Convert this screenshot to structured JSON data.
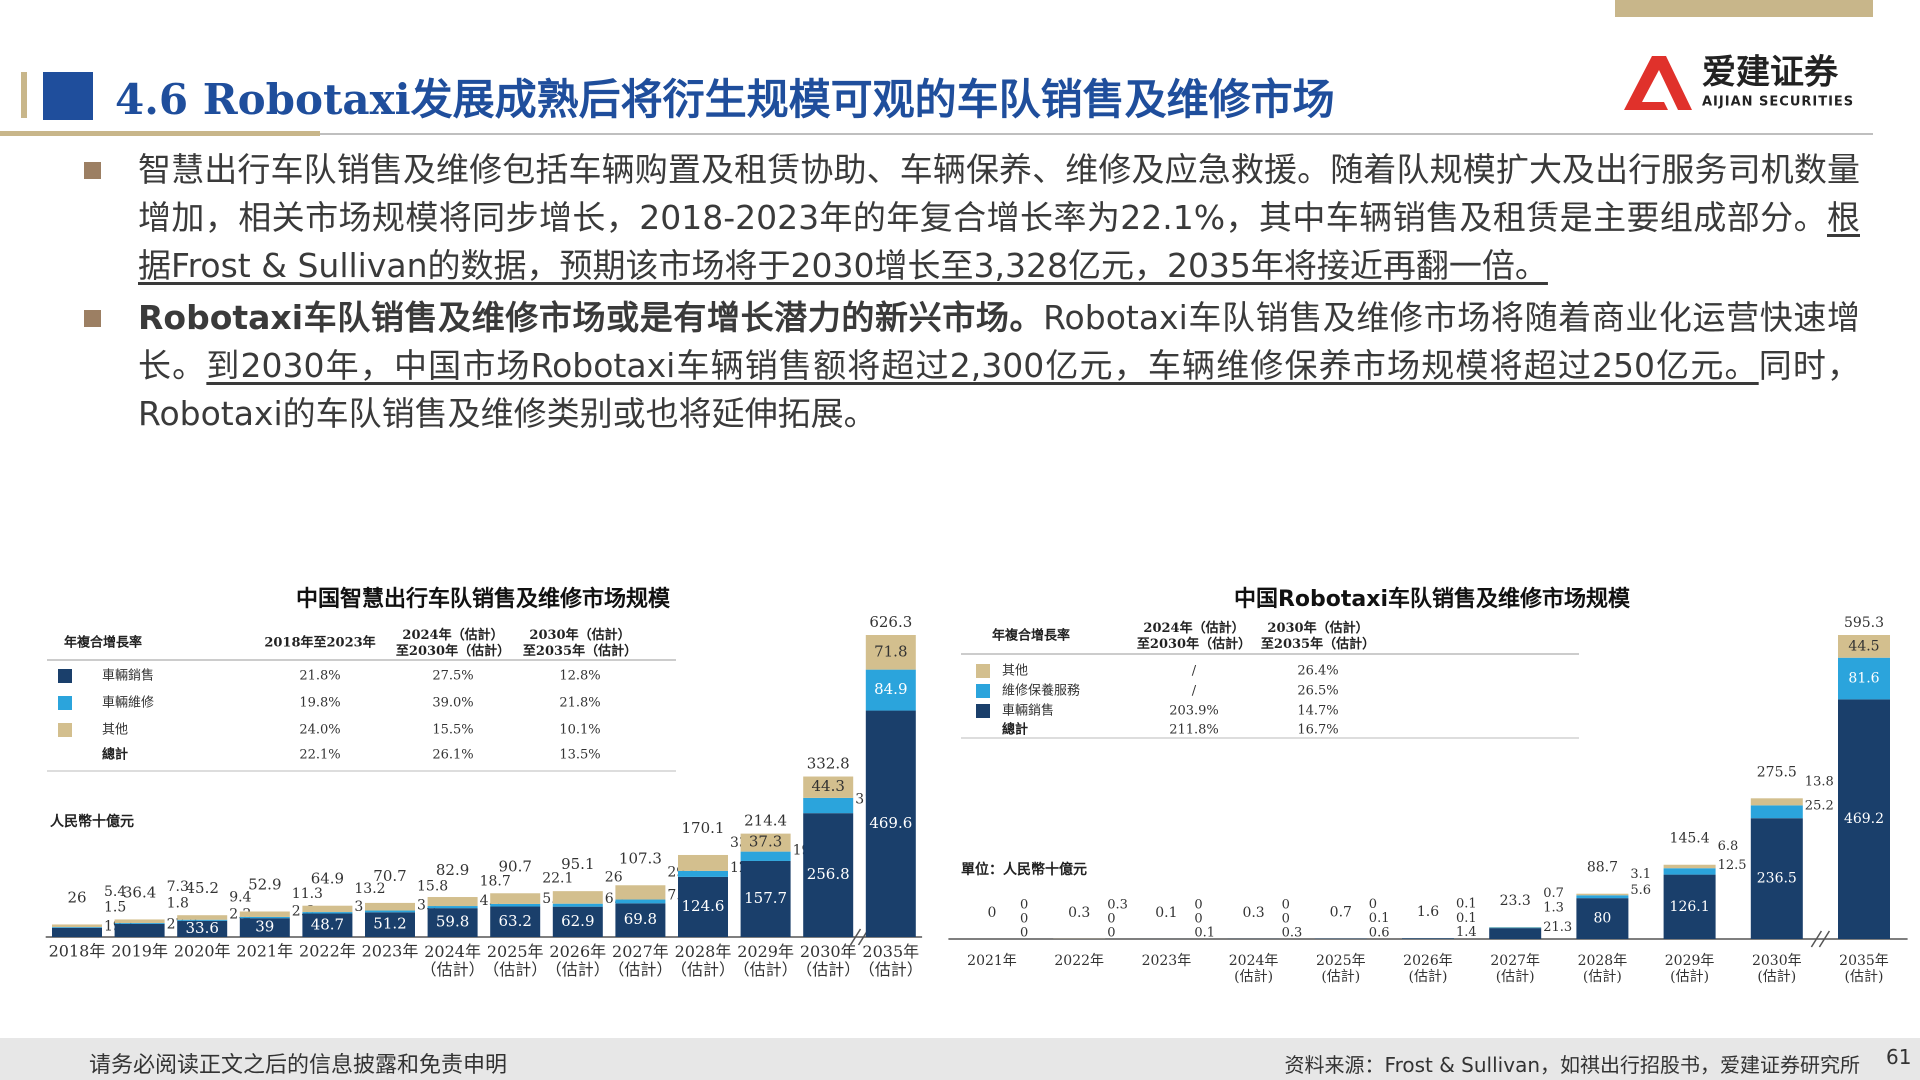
{
  "header": {
    "title": "4.6 Robotaxi发展成熟后将衍生规模可观的车队销售及维修市场",
    "logo_name": "爱建证券",
    "logo_sub": "AIJIAN SECURITIES"
  },
  "bullets": [
    [
      {
        "text": "智慧出行车队销售及维修包括车辆购置及租赁协助、车辆保养、维修及应急救援。随着队规模扩大及出行服务司机数量增加，相关市场规模将同步增长，2018-2023年的年复合增长率为22.1%，其中车辆销售及租赁是主要组成部分。"
      },
      {
        "text": "根据Frost & Sullivan的数据，预期该市场将于2030增长至3,328亿元，2035年将接近再翻一倍。",
        "underline": true
      }
    ],
    [
      {
        "text": "Robotaxi车队销售及维修市场或是有增长潜力的新兴市场。",
        "bold": true
      },
      {
        "text": "Robotaxi车队销售及维修市场将随着商业化运营快速增长。"
      },
      {
        "text": "到2030年，中国市场Robotaxi车辆销售额将超过2,300亿元，车辆维修保养市场规模将超过250亿元。",
        "underline": true
      },
      {
        "text": "同时，Robotaxi的车队销售及维修类别或也将延伸拓展。"
      }
    ]
  ],
  "chart_data": [
    {
      "type": "stacked_bar",
      "title": "中国智慧出行车队销售及维修市场规模",
      "unit": "人民幣十億元",
      "categories": [
        "2018年",
        "2019年",
        "2020年",
        "2021年",
        "2022年",
        "2023年",
        "2024年\n（估計）",
        "2025年\n（估計）",
        "2026年\n（估計）",
        "2027年\n（估計）",
        "2028年\n（估計）",
        "2029年\n（估計）",
        "2030年\n（估計）",
        "2035年\n（估計）"
      ],
      "series": [
        {
          "name": "車輛銷售",
          "color": "#1a3f6b",
          "values": [
            19.1,
            27.3,
            33.6,
            39.0,
            48.7,
            51.2,
            59.8,
            63.2,
            62.9,
            69.8,
            124.6,
            157.7,
            256.8,
            469.6
          ],
          "cagr": [
            "21.8%",
            "27.5%",
            "12.8%"
          ]
        },
        {
          "name": "車輛維修",
          "color": "#2ba4dc",
          "values": [
            1.5,
            1.8,
            2.2,
            2.6,
            3.0,
            3.7,
            4.4,
            5.4,
            6.2,
            7.9,
            12.5,
            19.4,
            31.7,
            84.9
          ],
          "cagr": [
            "19.8%",
            "39.0%",
            "21.8%"
          ]
        },
        {
          "name": "其他",
          "color": "#d3bf8e",
          "values": [
            5.4,
            7.3,
            9.4,
            11.3,
            13.2,
            15.8,
            18.7,
            22.1,
            26.0,
            29.6,
            33.0,
            37.3,
            44.3,
            71.8
          ],
          "cagr": [
            "24.0%",
            "15.5%",
            "10.1%"
          ]
        }
      ],
      "totals": [
        26.0,
        36.4,
        45.2,
        52.9,
        64.9,
        70.7,
        82.9,
        90.7,
        95.1,
        107.3,
        170.1,
        214.4,
        332.8,
        626.3
      ],
      "cagr_header": [
        "年複合增長率",
        "2018年至2023年",
        "2024年（估計）\n至2030年（估計）",
        "2030年（估計）\n至2035年（估計）"
      ],
      "cagr_total_name": "總計",
      "cagr_total": [
        "22.1%",
        "26.1%",
        "13.5%"
      ],
      "legend_order": "normal"
    },
    {
      "type": "stacked_bar",
      "title": "中国Robotaxi车队销售及维修市场规模",
      "unit": "單位：人民幣十億元",
      "categories": [
        "2021年",
        "2022年",
        "2023年",
        "2024年\n(估計)",
        "2025年\n(估計)",
        "2026年\n(估計)",
        "2027年\n(估計)",
        "2028年\n(估計)",
        "2029年\n(估計)",
        "2030年\n(估計)",
        "2035年\n(估計)"
      ],
      "series": [
        {
          "name": "車輛銷售",
          "color": "#1a3f6b",
          "values": [
            0.0,
            0.0,
            0.1,
            0.3,
            0.6,
            1.4,
            21.3,
            80.0,
            126.1,
            236.5,
            469.2
          ],
          "cagr": [
            "203.9%",
            "14.7%"
          ]
        },
        {
          "name": "維修保養服務",
          "color": "#2ba4dc",
          "values": [
            0.0,
            0.0,
            0.0,
            0.0,
            0.1,
            0.1,
            1.3,
            5.6,
            12.5,
            25.2,
            81.6
          ],
          "cagr": [
            "/",
            "26.5%"
          ]
        },
        {
          "name": "其他",
          "color": "#d3bf8e",
          "values": [
            0.0,
            0.3,
            0.0,
            0.0,
            0.0,
            0.1,
            0.7,
            3.1,
            6.8,
            13.8,
            44.5
          ],
          "cagr": [
            "/",
            "26.4%"
          ]
        }
      ],
      "totals": [
        0.0,
        0.3,
        0.1,
        0.3,
        0.7,
        1.6,
        23.3,
        88.7,
        145.4,
        275.5,
        595.3
      ],
      "cagr_header": [
        "年複合增長率",
        "2024年（估計）\n至2030年（估計）",
        "2030年（估計）\n至2035年（估計）"
      ],
      "cagr_total_name": "總計",
      "cagr_total": [
        "211.8%",
        "16.7%"
      ],
      "legend_order": "reverse"
    }
  ],
  "footer": {
    "disclaimer": "请务必阅读正文之后的信息披露和免责申明",
    "source": "资料来源：Frost & Sullivan，如祺出行招股书，爱建证券研究所",
    "page": "61"
  }
}
